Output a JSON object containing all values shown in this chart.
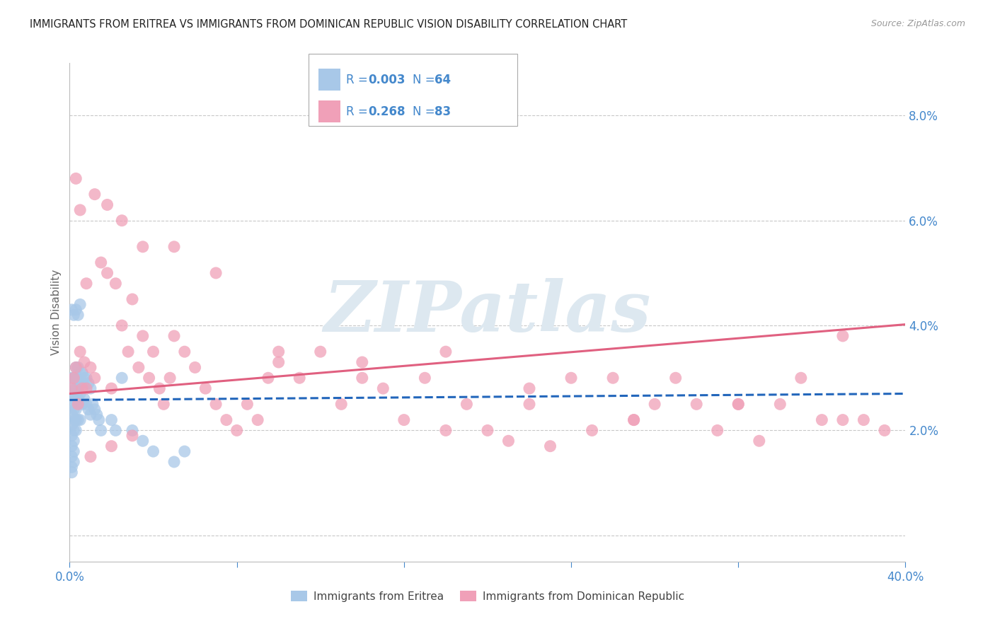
{
  "title": "IMMIGRANTS FROM ERITREA VS IMMIGRANTS FROM DOMINICAN REPUBLIC VISION DISABILITY CORRELATION CHART",
  "source": "Source: ZipAtlas.com",
  "ylabel": "Vision Disability",
  "xlim": [
    0.0,
    0.4
  ],
  "ylim": [
    -0.005,
    0.09
  ],
  "yticks": [
    0.0,
    0.02,
    0.04,
    0.06,
    0.08
  ],
  "ytick_labels": [
    "",
    "2.0%",
    "4.0%",
    "6.0%",
    "8.0%"
  ],
  "background_color": "#ffffff",
  "grid_color": "#c8c8c8",
  "title_color": "#222222",
  "source_color": "#999999",
  "ylabel_color": "#666666",
  "tick_color": "#4488cc",
  "watermark_text": "ZIPatlas",
  "watermark_color": "#dde8f0",
  "series1": {
    "label": "Immigrants from Eritrea",
    "R": 0.003,
    "N": 64,
    "dot_color": "#a8c8e8",
    "line_color": "#2266bb",
    "line_style": "--",
    "intercept": 0.0258,
    "slope": 0.003,
    "x": [
      0.001,
      0.001,
      0.001,
      0.001,
      0.001,
      0.001,
      0.001,
      0.001,
      0.001,
      0.001,
      0.002,
      0.002,
      0.002,
      0.002,
      0.002,
      0.002,
      0.002,
      0.002,
      0.002,
      0.003,
      0.003,
      0.003,
      0.003,
      0.003,
      0.003,
      0.003,
      0.004,
      0.004,
      0.004,
      0.004,
      0.004,
      0.005,
      0.005,
      0.005,
      0.005,
      0.006,
      0.006,
      0.006,
      0.007,
      0.007,
      0.008,
      0.008,
      0.009,
      0.009,
      0.01,
      0.01,
      0.011,
      0.012,
      0.013,
      0.014,
      0.015,
      0.02,
      0.022,
      0.025,
      0.03,
      0.035,
      0.04,
      0.05,
      0.055,
      0.004,
      0.003,
      0.002,
      0.001,
      0.005
    ],
    "y": [
      0.03,
      0.027,
      0.025,
      0.023,
      0.021,
      0.019,
      0.017,
      0.015,
      0.013,
      0.012,
      0.03,
      0.028,
      0.026,
      0.024,
      0.022,
      0.02,
      0.018,
      0.016,
      0.014,
      0.032,
      0.03,
      0.028,
      0.026,
      0.024,
      0.022,
      0.02,
      0.032,
      0.03,
      0.028,
      0.026,
      0.022,
      0.031,
      0.029,
      0.027,
      0.022,
      0.031,
      0.029,
      0.025,
      0.03,
      0.026,
      0.03,
      0.025,
      0.029,
      0.024,
      0.028,
      0.023,
      0.025,
      0.024,
      0.023,
      0.022,
      0.02,
      0.022,
      0.02,
      0.03,
      0.02,
      0.018,
      0.016,
      0.014,
      0.016,
      0.042,
      0.043,
      0.042,
      0.043,
      0.044
    ]
  },
  "series2": {
    "label": "Immigrants from Dominican Republic",
    "R": 0.268,
    "N": 83,
    "dot_color": "#f0a0b8",
    "line_color": "#e06080",
    "line_style": "-",
    "intercept": 0.027,
    "slope": 0.033,
    "x": [
      0.001,
      0.002,
      0.003,
      0.004,
      0.005,
      0.006,
      0.007,
      0.008,
      0.01,
      0.012,
      0.015,
      0.018,
      0.02,
      0.022,
      0.025,
      0.028,
      0.03,
      0.033,
      0.035,
      0.038,
      0.04,
      0.043,
      0.045,
      0.048,
      0.05,
      0.055,
      0.06,
      0.065,
      0.07,
      0.075,
      0.08,
      0.085,
      0.09,
      0.095,
      0.1,
      0.11,
      0.12,
      0.13,
      0.14,
      0.15,
      0.16,
      0.17,
      0.18,
      0.19,
      0.2,
      0.21,
      0.22,
      0.23,
      0.24,
      0.25,
      0.26,
      0.27,
      0.28,
      0.29,
      0.3,
      0.31,
      0.32,
      0.33,
      0.34,
      0.35,
      0.36,
      0.37,
      0.38,
      0.39,
      0.003,
      0.005,
      0.008,
      0.012,
      0.018,
      0.025,
      0.035,
      0.05,
      0.07,
      0.1,
      0.14,
      0.18,
      0.22,
      0.27,
      0.32,
      0.37,
      0.01,
      0.02,
      0.03
    ],
    "y": [
      0.028,
      0.03,
      0.032,
      0.025,
      0.035,
      0.028,
      0.033,
      0.028,
      0.032,
      0.03,
      0.052,
      0.05,
      0.028,
      0.048,
      0.04,
      0.035,
      0.045,
      0.032,
      0.038,
      0.03,
      0.035,
      0.028,
      0.025,
      0.03,
      0.038,
      0.035,
      0.032,
      0.028,
      0.025,
      0.022,
      0.02,
      0.025,
      0.022,
      0.03,
      0.033,
      0.03,
      0.035,
      0.025,
      0.03,
      0.028,
      0.022,
      0.03,
      0.02,
      0.025,
      0.02,
      0.018,
      0.025,
      0.017,
      0.03,
      0.02,
      0.03,
      0.022,
      0.025,
      0.03,
      0.025,
      0.02,
      0.025,
      0.018,
      0.025,
      0.03,
      0.022,
      0.038,
      0.022,
      0.02,
      0.068,
      0.062,
      0.048,
      0.065,
      0.063,
      0.06,
      0.055,
      0.055,
      0.05,
      0.035,
      0.033,
      0.035,
      0.028,
      0.022,
      0.025,
      0.022,
      0.015,
      0.017,
      0.019
    ]
  }
}
